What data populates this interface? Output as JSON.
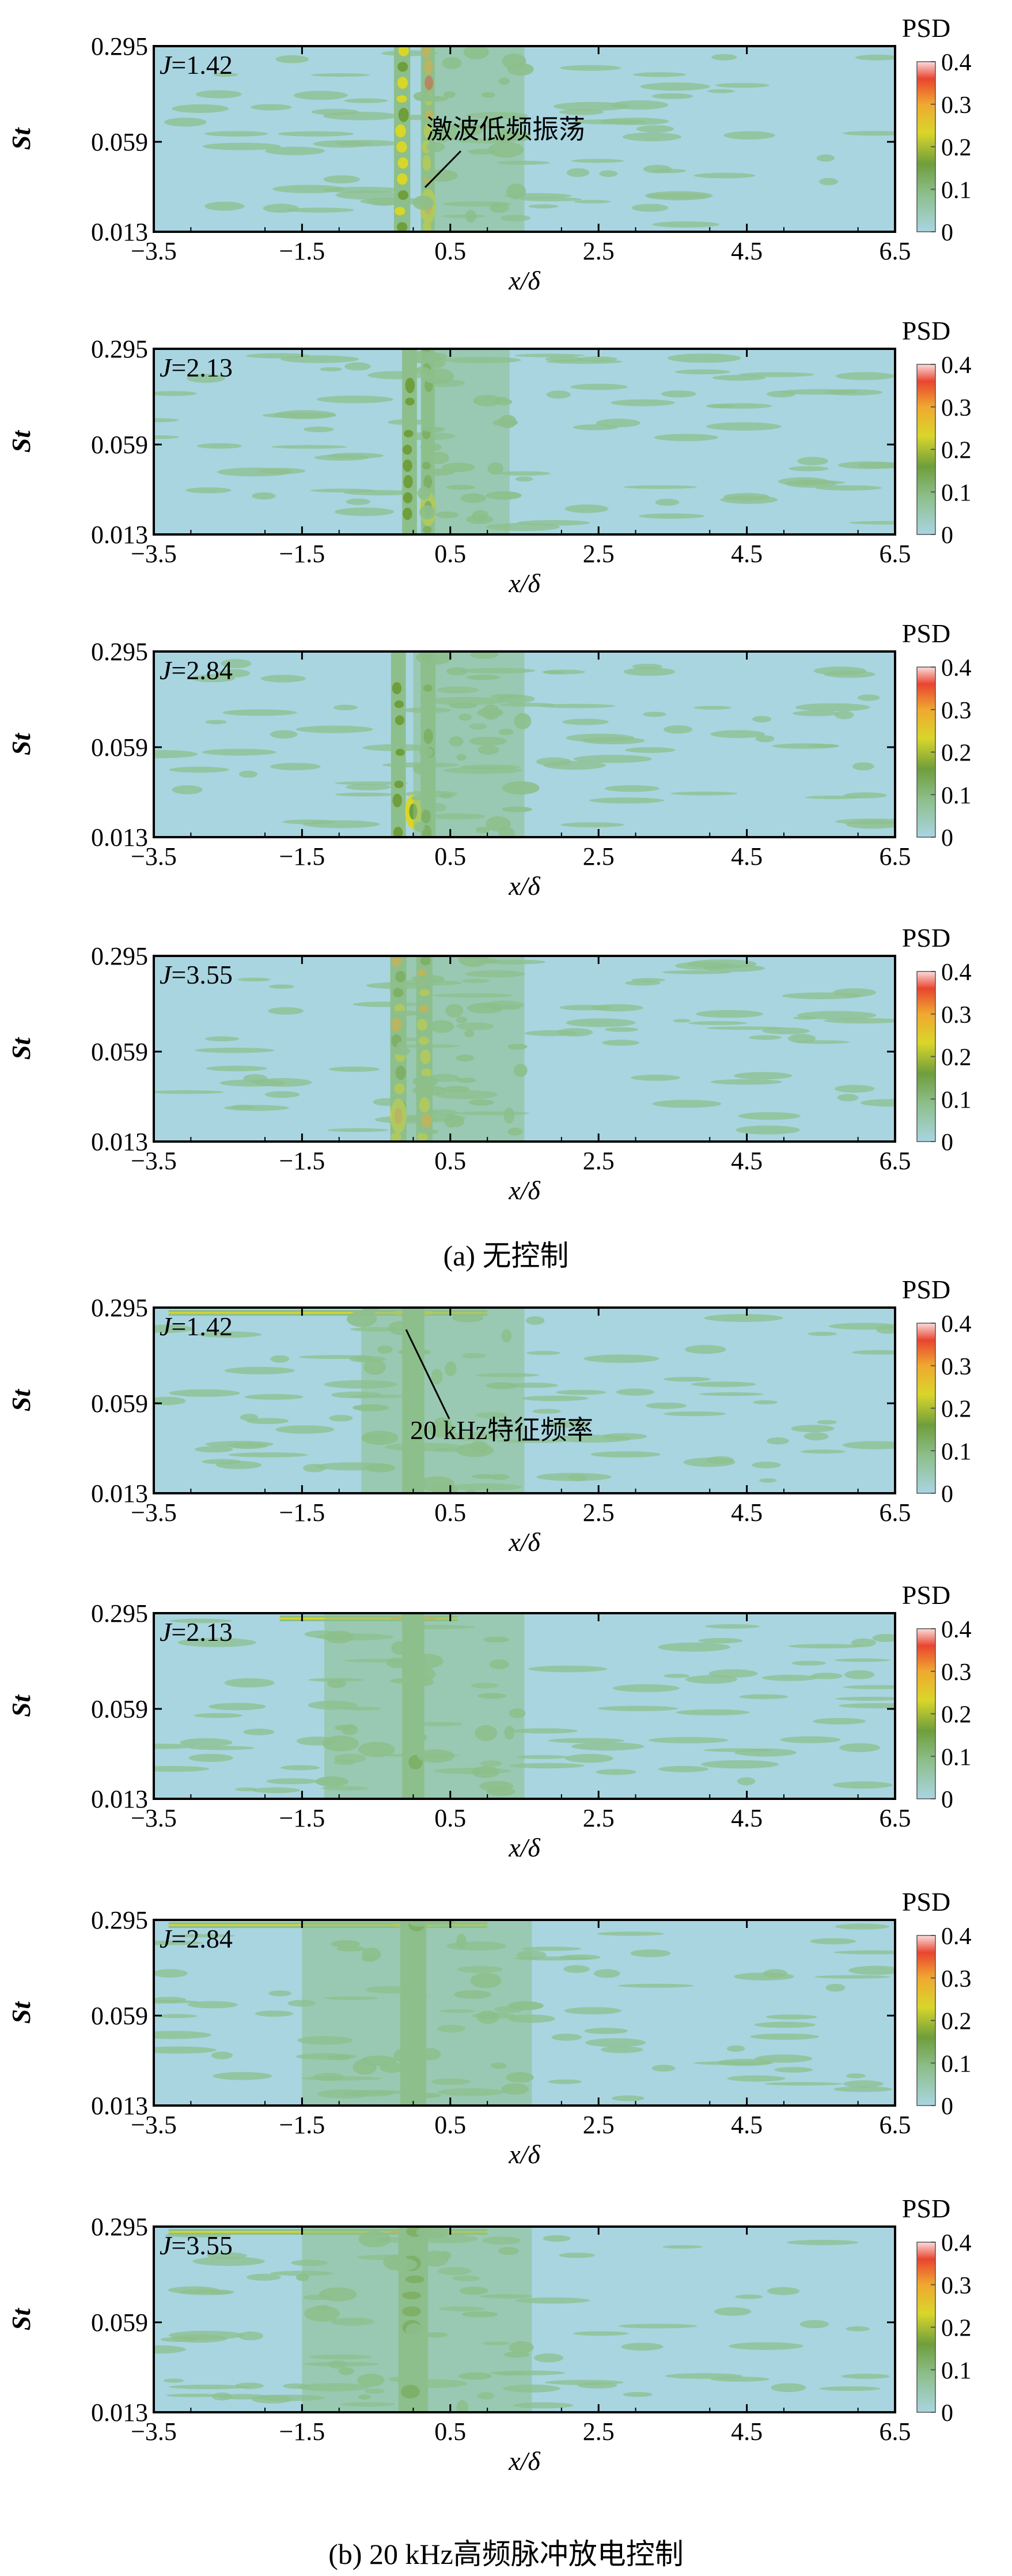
{
  "figure": {
    "caption_a": "(a) 无控制",
    "caption_b": "(b) 20 kHz高频脉冲放电控制"
  },
  "colors": {
    "background": "#a9d5e1",
    "colormap": [
      "#a9d5e1",
      "#8dbf8c",
      "#6f9e3c",
      "#d9d62a",
      "#f0a830",
      "#e9452f",
      "#fbdcdc"
    ],
    "frame": "#000000"
  },
  "colorbar": {
    "label": "PSD",
    "ticks": [
      "0.4",
      "0.3",
      "0.2",
      "0.1",
      "0"
    ],
    "range": [
      0,
      0.4
    ]
  },
  "chart_data": [
    {
      "type": "heatmap",
      "group": "a",
      "title": "J=1.42",
      "param_prefix": "J",
      "param_value": "=1.42",
      "xlabel": "x/δ",
      "ylabel": "St",
      "xlim": [
        -3.5,
        6.5
      ],
      "xticks": [
        "-3.5",
        "-1.5",
        "0.5",
        "2.5",
        "4.5",
        "6.5"
      ],
      "yticks": [
        "0.295",
        "0.059",
        "0.013"
      ],
      "ylim": [
        0.013,
        0.295
      ],
      "yscale": "log",
      "annotation": "激波低频振荡",
      "features": [
        {
          "kind": "column",
          "x": -0.15,
          "width": 0.22,
          "level": 0.2
        },
        {
          "kind": "column",
          "x": 0.2,
          "width": 0.18,
          "level": 0.3
        },
        {
          "kind": "hotspot",
          "x": 0.2,
          "st": 0.02,
          "level": 0.3
        },
        {
          "kind": "wake",
          "x0": 0.1,
          "x1": 1.5,
          "level": 0.06
        }
      ]
    },
    {
      "type": "heatmap",
      "group": "a",
      "title": "J=2.13",
      "param_prefix": "J",
      "param_value": "=2.13",
      "xlabel": "x/δ",
      "ylabel": "St",
      "xlim": [
        -3.5,
        6.5
      ],
      "xticks": [
        "-3.5",
        "-1.5",
        "0.5",
        "2.5",
        "4.5",
        "6.5"
      ],
      "yticks": [
        "0.295",
        "0.059",
        "0.013"
      ],
      "ylim": [
        0.013,
        0.295
      ],
      "yscale": "log",
      "features": [
        {
          "kind": "column",
          "x": -0.05,
          "width": 0.2,
          "level": 0.1
        },
        {
          "kind": "column",
          "x": 0.2,
          "width": 0.18,
          "level": 0.15
        },
        {
          "kind": "hotspot",
          "x": 0.2,
          "st": 0.02,
          "level": 0.15
        },
        {
          "kind": "wake",
          "x0": 0.1,
          "x1": 1.3,
          "level": 0.05
        }
      ]
    },
    {
      "type": "heatmap",
      "group": "a",
      "title": "J=2.84",
      "param_prefix": "J",
      "param_value": "=2.84",
      "xlabel": "x/δ",
      "ylabel": "St",
      "xlim": [
        -3.5,
        6.5
      ],
      "xticks": [
        "-3.5",
        "-1.5",
        "0.5",
        "2.5",
        "4.5",
        "6.5"
      ],
      "yticks": [
        "0.295",
        "0.059",
        "0.013"
      ],
      "ylim": [
        0.013,
        0.295
      ],
      "yscale": "log",
      "features": [
        {
          "kind": "column",
          "x": -0.2,
          "width": 0.2,
          "level": 0.1
        },
        {
          "kind": "column",
          "x": 0.2,
          "width": 0.2,
          "level": 0.12
        },
        {
          "kind": "hotspot",
          "x": 0.0,
          "st": 0.02,
          "level": 0.12
        },
        {
          "kind": "wake",
          "x0": 0.0,
          "x1": 1.5,
          "level": 0.05
        }
      ]
    },
    {
      "type": "heatmap",
      "group": "a",
      "title": "J=3.55",
      "param_prefix": "J",
      "param_value": "=3.55",
      "xlabel": "x/δ",
      "ylabel": "St",
      "xlim": [
        -3.5,
        6.5
      ],
      "xticks": [
        "-3.5",
        "-1.5",
        "0.5",
        "2.5",
        "4.5",
        "6.5"
      ],
      "yticks": [
        "0.295",
        "0.059",
        "0.013"
      ],
      "ylim": [
        0.013,
        0.295
      ],
      "yscale": "log",
      "features": [
        {
          "kind": "column",
          "x": -0.2,
          "width": 0.22,
          "level": 0.25
        },
        {
          "kind": "column",
          "x": 0.15,
          "width": 0.22,
          "level": 0.25
        },
        {
          "kind": "hotspot",
          "x": -0.2,
          "st": 0.02,
          "level": 0.3
        },
        {
          "kind": "wake",
          "x0": -0.3,
          "x1": 1.5,
          "level": 0.06
        }
      ]
    },
    {
      "type": "heatmap",
      "group": "b",
      "title": "J=1.42",
      "param_prefix": "J",
      "param_value": "=1.42",
      "xlabel": "x/δ",
      "ylabel": "St",
      "xlim": [
        -3.5,
        6.5
      ],
      "xticks": [
        "-3.5",
        "-1.5",
        "0.5",
        "2.5",
        "4.5",
        "6.5"
      ],
      "yticks": [
        "0.295",
        "0.059",
        "0.013"
      ],
      "ylim": [
        0.013,
        0.295
      ],
      "yscale": "log",
      "annotation": "20 kHz特征频率",
      "features": [
        {
          "kind": "band",
          "st": 0.27,
          "x0": -3.3,
          "x1": 1.0,
          "level": 0.2
        },
        {
          "kind": "column",
          "x": 0.0,
          "width": 0.3,
          "level": 0.06
        },
        {
          "kind": "wake",
          "x0": -0.7,
          "x1": 1.5,
          "level": 0.05
        }
      ]
    },
    {
      "type": "heatmap",
      "group": "b",
      "title": "J=2.13",
      "param_prefix": "J",
      "param_value": "=2.13",
      "xlabel": "x/δ",
      "ylabel": "St",
      "xlim": [
        -3.5,
        6.5
      ],
      "xticks": [
        "-3.5",
        "-1.5",
        "0.5",
        "2.5",
        "4.5",
        "6.5"
      ],
      "yticks": [
        "0.295",
        "0.059",
        "0.013"
      ],
      "ylim": [
        0.013,
        0.295
      ],
      "yscale": "log",
      "features": [
        {
          "kind": "band",
          "st": 0.27,
          "x0": -1.8,
          "x1": 0.6,
          "level": 0.25
        },
        {
          "kind": "column",
          "x": 0.0,
          "width": 0.3,
          "level": 0.08
        },
        {
          "kind": "wake",
          "x0": -1.2,
          "x1": 1.5,
          "level": 0.05
        }
      ]
    },
    {
      "type": "heatmap",
      "group": "b",
      "title": "J=2.84",
      "param_prefix": "J",
      "param_value": "=2.84",
      "xlabel": "x/δ",
      "ylabel": "St",
      "xlim": [
        -3.5,
        6.5
      ],
      "xticks": [
        "-3.5",
        "-1.5",
        "0.5",
        "2.5",
        "4.5",
        "6.5"
      ],
      "yticks": [
        "0.295",
        "0.059",
        "0.013"
      ],
      "ylim": [
        0.013,
        0.295
      ],
      "yscale": "log",
      "features": [
        {
          "kind": "band",
          "st": 0.27,
          "x0": -3.3,
          "x1": 1.0,
          "level": 0.2
        },
        {
          "kind": "column",
          "x": 0.0,
          "width": 0.35,
          "level": 0.08
        },
        {
          "kind": "wake",
          "x0": -1.5,
          "x1": 1.6,
          "level": 0.05
        }
      ]
    },
    {
      "type": "heatmap",
      "group": "b",
      "title": "J=3.55",
      "param_prefix": "J",
      "param_value": "=3.55",
      "xlabel": "x/δ",
      "ylabel": "St",
      "xlim": [
        -3.5,
        6.5
      ],
      "xticks": [
        "-3.5",
        "-1.5",
        "0.5",
        "2.5",
        "4.5",
        "6.5"
      ],
      "yticks": [
        "0.295",
        "0.059",
        "0.013"
      ],
      "ylim": [
        0.013,
        0.295
      ],
      "yscale": "log",
      "features": [
        {
          "kind": "band",
          "st": 0.27,
          "x0": -3.3,
          "x1": 1.0,
          "level": 0.25
        },
        {
          "kind": "column",
          "x": 0.0,
          "width": 0.4,
          "level": 0.1
        },
        {
          "kind": "wake",
          "x0": -1.5,
          "x1": 1.6,
          "level": 0.06
        }
      ]
    }
  ]
}
